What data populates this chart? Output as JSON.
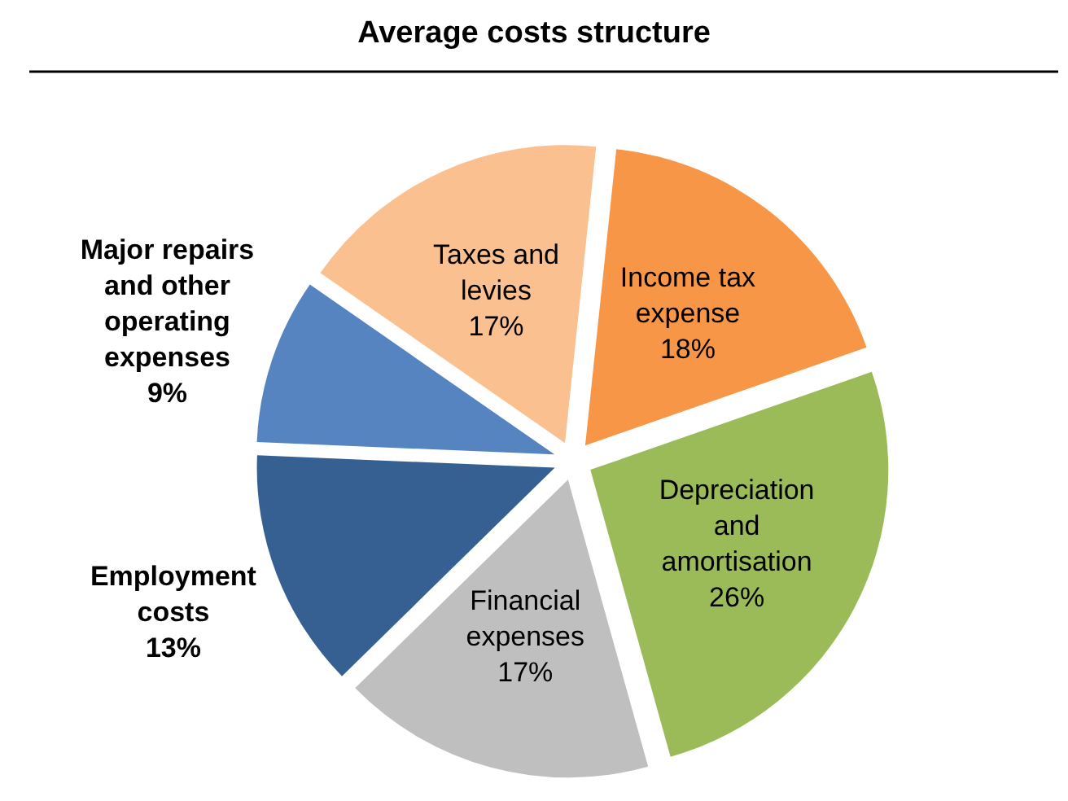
{
  "chart_data": {
    "type": "pie",
    "title": "Average costs structure",
    "categories": [
      "Income tax expense",
      "Depreciation and amortisation",
      "Financial expenses",
      "Employment costs",
      "Major repairs and other operating expenses",
      "Taxes and levies"
    ],
    "values": [
      18,
      26,
      17,
      13,
      9,
      17
    ],
    "colors": [
      "#f79646",
      "#9bbb59",
      "#bfbfbf",
      "#376092",
      "#5584c0",
      "#fac090"
    ],
    "value_labels": [
      "18%",
      "26%",
      "17%",
      "13%",
      "9%",
      "17%"
    ]
  }
}
